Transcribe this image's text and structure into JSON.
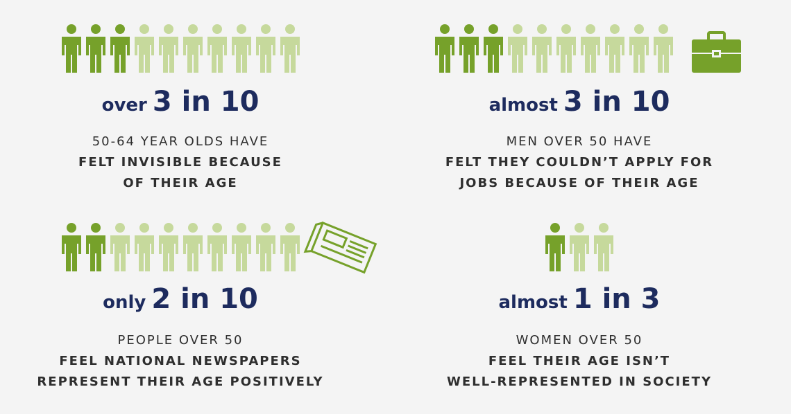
{
  "panels": [
    {
      "people": {
        "highlighted": 3,
        "total": 10
      },
      "icon": "briefcase-none",
      "headline": {
        "prefix": "over",
        "figure": "3 in 10"
      },
      "lines": [
        "50-64 YEAR OLDS HAVE",
        "FELT INVISIBLE BECAUSE",
        "OF THEIR AGE"
      ]
    },
    {
      "people": {
        "highlighted": 3,
        "total": 10
      },
      "headline": {
        "prefix": "almost",
        "figure": "3 in 10"
      },
      "lines": [
        "MEN OVER 50 HAVE",
        "FELT THEY COULDN’T APPLY FOR",
        "JOBS BECAUSE OF THEIR AGE"
      ]
    },
    {
      "people": {
        "highlighted": 2,
        "total": 10
      },
      "headline": {
        "prefix": "only",
        "figure": "2 in 10"
      },
      "lines": [
        "PEOPLE OVER 50",
        "FEEL NATIONAL NEWSPAPERS",
        "REPRESENT THEIR AGE POSITIVELY"
      ]
    },
    {
      "people": {
        "highlighted": 1,
        "total": 3
      },
      "headline": {
        "prefix": "almost",
        "figure": "1 in 3"
      },
      "lines": [
        "WOMEN OVER 50",
        "FEEL THEIR AGE ISN’T",
        "WELL-REPRESENTED IN SOCIETY"
      ]
    }
  ]
}
